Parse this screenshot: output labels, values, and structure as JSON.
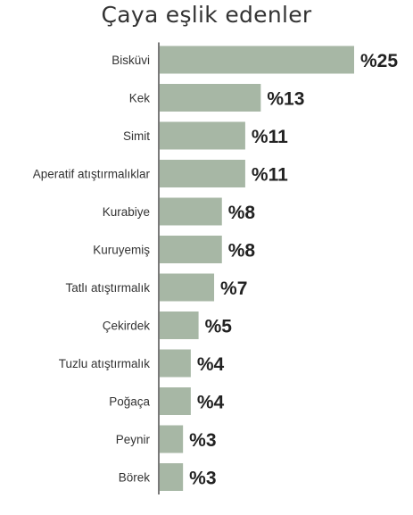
{
  "chart_data": {
    "type": "bar",
    "orientation": "horizontal",
    "title": "Çaya eşlik edenler",
    "categories": [
      "Bisküvi",
      "Kek",
      "Simit",
      "Aperatif atıştırmalıklar",
      "Kurabiye",
      "Kuruyemiş",
      "Tatlı atıştırmalık",
      "Çekirdek",
      "Tuzlu atıştırmalık",
      "Poğaça",
      "Peynir",
      "Börek"
    ],
    "values": [
      25,
      13,
      11,
      11,
      8,
      8,
      7,
      5,
      4,
      4,
      3,
      3
    ],
    "value_labels": [
      "%25",
      "%13",
      "%11",
      "%11",
      "%8",
      "%8",
      "%7",
      "%5",
      "%4",
      "%4",
      "%3",
      "%3"
    ],
    "xlabel": "",
    "ylabel": "",
    "xlim": [
      0,
      25
    ],
    "grid": false,
    "legend": "none",
    "colors": {
      "bar": "#a7b7a5",
      "axis": "#333333",
      "text": "#333333"
    }
  }
}
